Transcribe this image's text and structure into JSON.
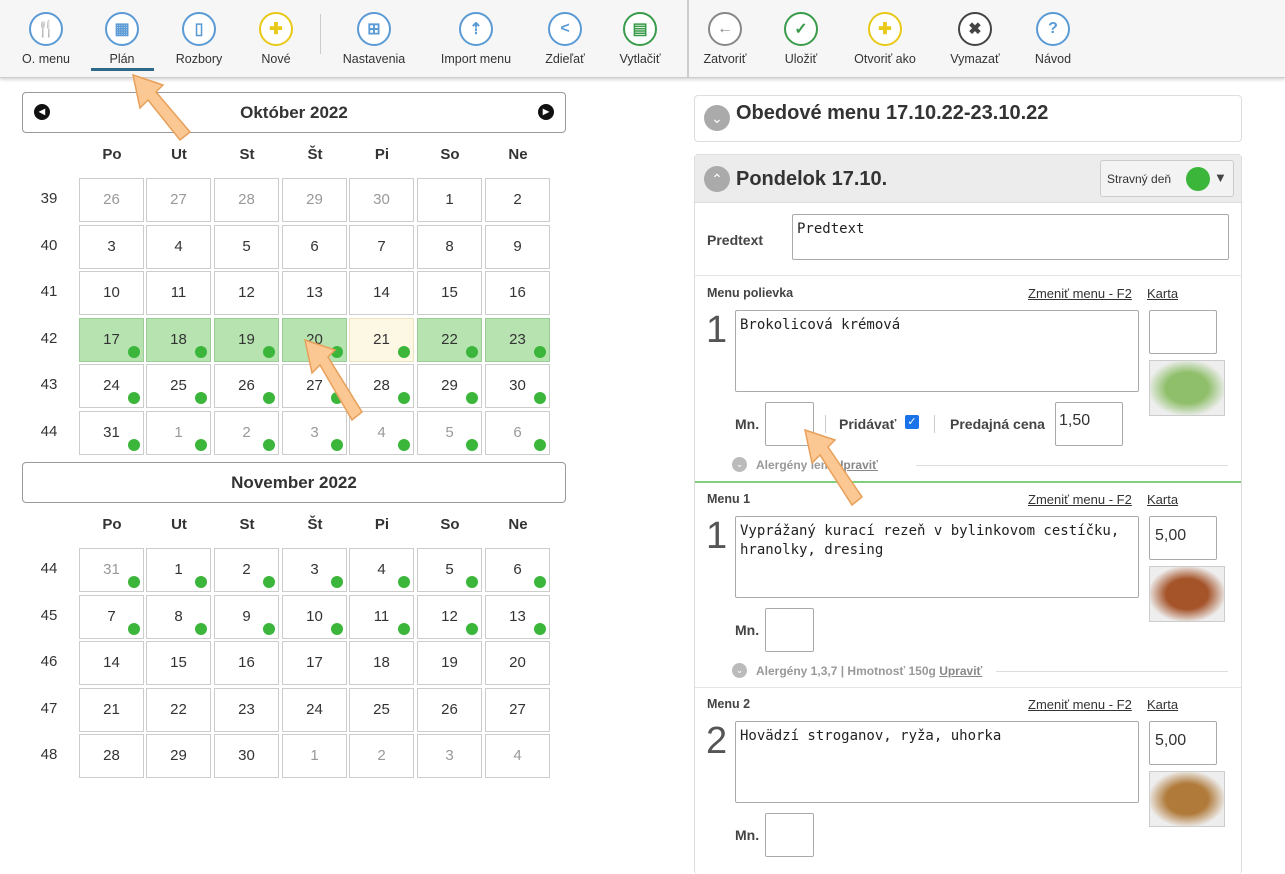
{
  "toolbar": {
    "left": [
      {
        "label": "O. menu",
        "icon": "fork-knife-icon",
        "glyph": "🍴",
        "color": "#5b9bd5"
      },
      {
        "label": "Plán",
        "icon": "calendar-grid-icon",
        "glyph": "▦",
        "color": "#5b9bd5",
        "active": true
      },
      {
        "label": "Rozbory",
        "icon": "bar-chart-icon",
        "glyph": "▯",
        "color": "#5b9bd5"
      },
      {
        "label": "Nové",
        "icon": "plus-icon",
        "glyph": "✚",
        "color": "#e8c919"
      },
      {
        "label": "Nastavenia",
        "icon": "blocks-icon",
        "glyph": "⊞",
        "color": "#5b9bd5"
      },
      {
        "label": "Import menu",
        "icon": "import-icon",
        "glyph": "⇡",
        "color": "#5b9bd5"
      },
      {
        "label": "Zdieľať",
        "icon": "share-icon",
        "glyph": "<",
        "color": "#5b9bd5"
      },
      {
        "label": "Vytlačiť",
        "icon": "printer-icon",
        "glyph": "▤",
        "color": "#3a9b4a"
      }
    ],
    "right": [
      {
        "label": "Zatvoriť",
        "icon": "back-arrow-icon",
        "glyph": "←",
        "color": "#888"
      },
      {
        "label": "Uložiť",
        "icon": "check-icon",
        "glyph": "✓",
        "color": "#3a9b4a"
      },
      {
        "label": "Otvoriť ako",
        "icon": "plus-icon",
        "glyph": "✚",
        "color": "#e8c919"
      },
      {
        "label": "Vymazať",
        "icon": "x-icon",
        "glyph": "✖",
        "color": "#444"
      },
      {
        "label": "Návod",
        "icon": "help-icon",
        "glyph": "?",
        "color": "#5b9bd5"
      }
    ]
  },
  "calendar": {
    "weekdays": [
      "Po",
      "Ut",
      "St",
      "Št",
      "Pi",
      "So",
      "Ne"
    ],
    "months": [
      {
        "title": "Október 2022",
        "weeks": [
          {
            "week": 39,
            "days": [
              [
                26,
                "m",
                ""
              ],
              [
                27,
                "m",
                ""
              ],
              [
                28,
                "m",
                ""
              ],
              [
                29,
                "m",
                ""
              ],
              [
                30,
                "m",
                ""
              ],
              [
                1,
                "",
                ""
              ],
              [
                2,
                "",
                ""
              ]
            ]
          },
          {
            "week": 40,
            "days": [
              [
                3,
                "",
                ""
              ],
              [
                4,
                "",
                ""
              ],
              [
                5,
                "",
                ""
              ],
              [
                6,
                "",
                ""
              ],
              [
                7,
                "",
                ""
              ],
              [
                8,
                "",
                ""
              ],
              [
                9,
                "",
                ""
              ]
            ]
          },
          {
            "week": 41,
            "days": [
              [
                10,
                "",
                ""
              ],
              [
                11,
                "",
                ""
              ],
              [
                12,
                "",
                ""
              ],
              [
                13,
                "",
                ""
              ],
              [
                14,
                "",
                ""
              ],
              [
                15,
                "",
                ""
              ],
              [
                16,
                "",
                ""
              ]
            ]
          },
          {
            "week": 42,
            "days": [
              [
                17,
                "sel",
                "dot"
              ],
              [
                18,
                "sel",
                "dot"
              ],
              [
                19,
                "sel",
                "dot"
              ],
              [
                20,
                "sel",
                "dot"
              ],
              [
                21,
                "today",
                "dot"
              ],
              [
                22,
                "sel",
                "dot"
              ],
              [
                23,
                "sel",
                "dot"
              ]
            ]
          },
          {
            "week": 43,
            "days": [
              [
                24,
                "",
                "dot"
              ],
              [
                25,
                "",
                "dot"
              ],
              [
                26,
                "",
                "dot"
              ],
              [
                27,
                "",
                "dot"
              ],
              [
                28,
                "",
                "dot"
              ],
              [
                29,
                "",
                "dot"
              ],
              [
                30,
                "",
                "dot"
              ]
            ]
          },
          {
            "week": 44,
            "days": [
              [
                31,
                "",
                "dot"
              ],
              [
                1,
                "m",
                "dot"
              ],
              [
                2,
                "m",
                "dot"
              ],
              [
                3,
                "m",
                "dot"
              ],
              [
                4,
                "m",
                "dot"
              ],
              [
                5,
                "m",
                "dot"
              ],
              [
                6,
                "m",
                "dot"
              ]
            ]
          }
        ]
      },
      {
        "title": "November 2022",
        "weeks": [
          {
            "week": 44,
            "days": [
              [
                31,
                "m",
                "dot"
              ],
              [
                1,
                "",
                "dot"
              ],
              [
                2,
                "",
                "dot"
              ],
              [
                3,
                "",
                "dot"
              ],
              [
                4,
                "",
                "dot"
              ],
              [
                5,
                "",
                "dot"
              ],
              [
                6,
                "",
                "dot"
              ]
            ]
          },
          {
            "week": 45,
            "days": [
              [
                7,
                "",
                "dot"
              ],
              [
                8,
                "",
                "dot"
              ],
              [
                9,
                "",
                "dot"
              ],
              [
                10,
                "",
                "dot"
              ],
              [
                11,
                "",
                "dot"
              ],
              [
                12,
                "",
                "dot"
              ],
              [
                13,
                "",
                "dot"
              ]
            ]
          },
          {
            "week": 46,
            "days": [
              [
                14,
                "",
                ""
              ],
              [
                15,
                "",
                ""
              ],
              [
                16,
                "",
                ""
              ],
              [
                17,
                "",
                ""
              ],
              [
                18,
                "",
                ""
              ],
              [
                19,
                "",
                ""
              ],
              [
                20,
                "",
                ""
              ]
            ]
          },
          {
            "week": 47,
            "days": [
              [
                21,
                "",
                ""
              ],
              [
                22,
                "",
                ""
              ],
              [
                23,
                "",
                ""
              ],
              [
                24,
                "",
                ""
              ],
              [
                25,
                "",
                ""
              ],
              [
                26,
                "",
                ""
              ],
              [
                27,
                "",
                ""
              ]
            ]
          },
          {
            "week": 48,
            "days": [
              [
                28,
                "",
                ""
              ],
              [
                29,
                "",
                ""
              ],
              [
                30,
                "",
                ""
              ],
              [
                1,
                "m",
                ""
              ],
              [
                2,
                "m",
                ""
              ],
              [
                3,
                "m",
                ""
              ],
              [
                4,
                "m",
                ""
              ]
            ]
          }
        ]
      }
    ]
  },
  "menu_header": "Obedové menu 17.10.22-23.10.22",
  "day": {
    "title": "Pondelok 17.10.",
    "type_label": "Stravný deň",
    "type_color": "#3bb63b",
    "pretext_label": "Predtext",
    "pretext_value": "Predtext"
  },
  "items": [
    {
      "label": "Menu polievka",
      "number": "1",
      "text": "Brokolicová krémová",
      "price": "",
      "qty_label": "Mn.",
      "add_label": "Pridávať",
      "add_checked": true,
      "sale_label": "Predajná cena",
      "sale_price": "1,50",
      "allergens": "Alergény",
      "allergens_tail": "iem",
      "edit": "Upraviť"
    },
    {
      "label": "Menu 1",
      "number": "1",
      "text": "Vyprážaný kurací rezeň v bylinkovom cestíčku, hranolky, dresing",
      "price": "5,00",
      "qty_label": "Mn.",
      "allergens": "Alergény 1,3,7 | Hmotnosť 150g",
      "edit": "Upraviť"
    },
    {
      "label": "Menu 2",
      "number": "2",
      "text": "Hovädzí stroganov, ryža, uhorka",
      "price": "5,00",
      "qty_label": "Mn."
    }
  ],
  "links": {
    "change": "Zmeniť menu - F2",
    "card": "Karta"
  }
}
